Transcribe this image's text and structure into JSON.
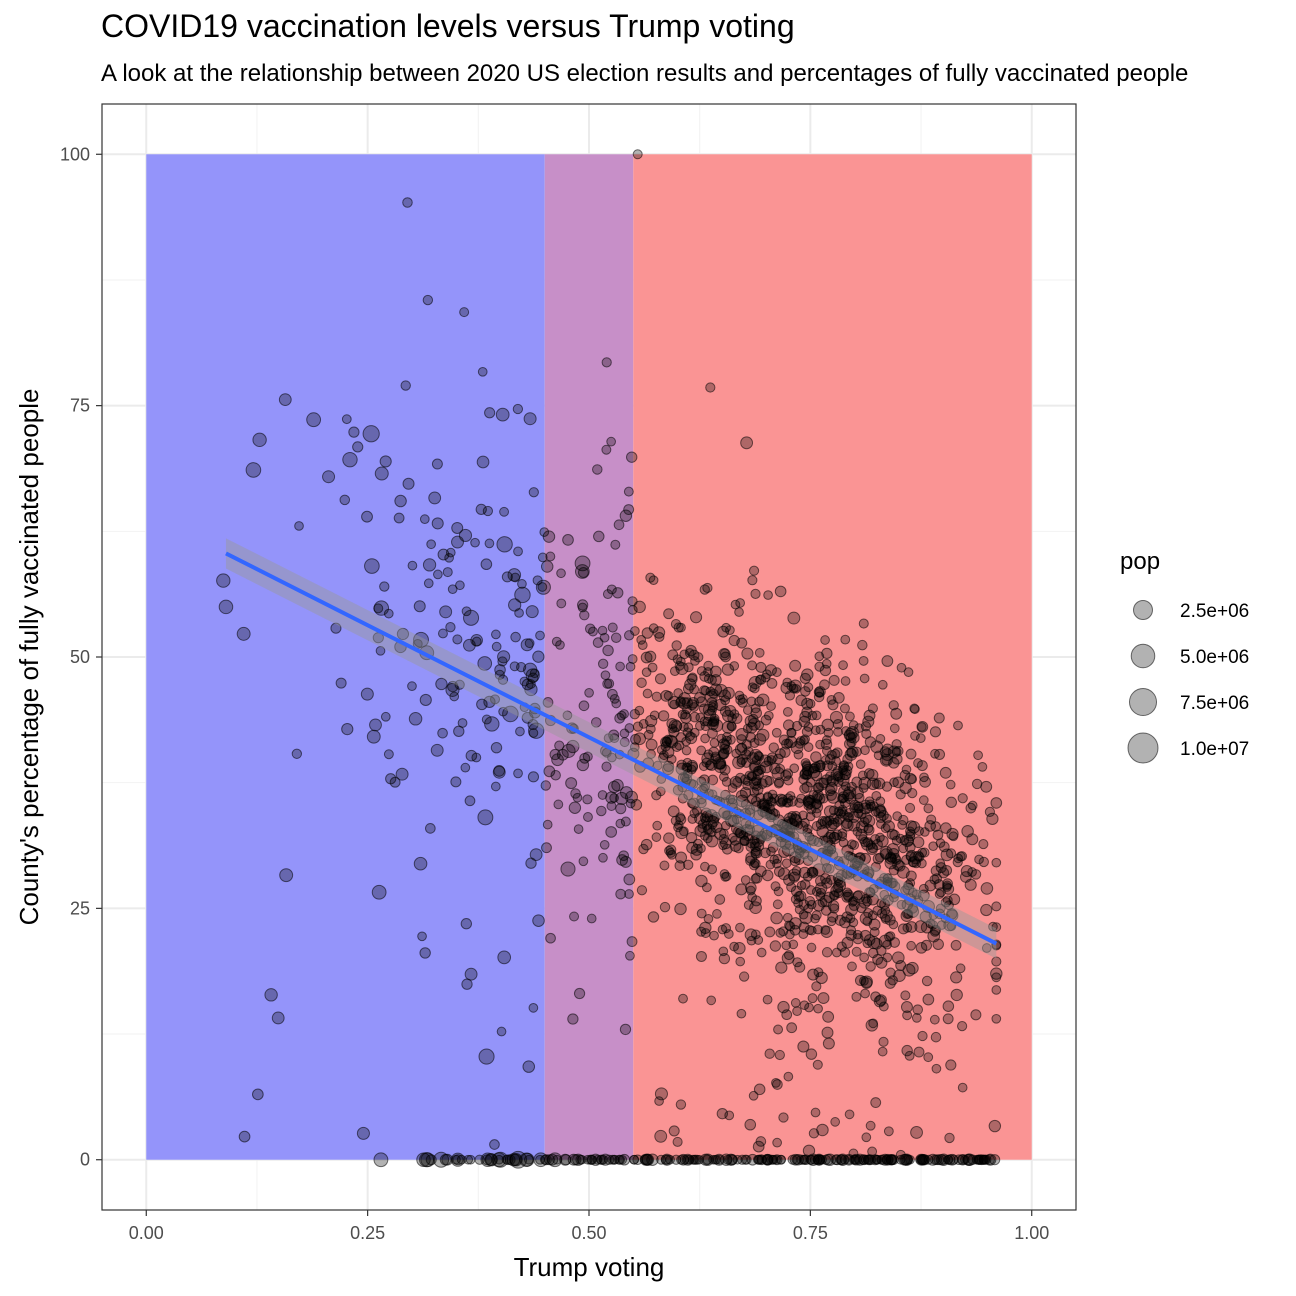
{
  "chart_data": {
    "type": "scatter",
    "title": "COVID19 vaccination levels versus Trump voting",
    "subtitle": "A look at the relationship between 2020 US election results and percentages of fully vaccinated people",
    "xlabel": "Trump voting",
    "ylabel": "County's percentage of fully vaccinated people",
    "xlim": [
      -0.05,
      1.05
    ],
    "ylim": [
      -5,
      105
    ],
    "x_ticks": [
      0.0,
      0.25,
      0.5,
      0.75,
      1.0
    ],
    "x_tick_labels": [
      "0.00",
      "0.25",
      "0.50",
      "0.75",
      "1.00"
    ],
    "y_ticks": [
      0,
      25,
      50,
      75,
      100
    ],
    "y_tick_labels": [
      "0",
      "25",
      "50",
      "75",
      "100"
    ],
    "grid": true,
    "background_bands": [
      {
        "xmin": 0.0,
        "xmax": 0.45,
        "ymin": 0,
        "ymax": 100,
        "color": "#9494fa"
      },
      {
        "xmin": 0.45,
        "xmax": 0.55,
        "ymin": 0,
        "ymax": 100,
        "color": "#c78fc8"
      },
      {
        "xmin": 0.55,
        "xmax": 1.0,
        "ymin": 0,
        "ymax": 100,
        "color": "#fa9494"
      }
    ],
    "trend_line": {
      "x": [
        0.09,
        0.96
      ],
      "y": [
        60.3,
        21.5
      ],
      "color": "#3366ff",
      "ribbon": 1.5
    },
    "point_color": "#000000",
    "point_opacity": 0.3,
    "size_legend": {
      "title": "pop",
      "position": "right",
      "entries": [
        {
          "label": "2.5e+06",
          "value": 2500000
        },
        {
          "label": "5.0e+06",
          "value": 5000000
        },
        {
          "label": "7.5e+06",
          "value": 7500000
        },
        {
          "label": "1.0e+07",
          "value": 10000000
        }
      ]
    },
    "highlighted_points": [
      {
        "x": 0.555,
        "y": 100,
        "pop": 20000
      },
      {
        "x": 0.295,
        "y": 95.2,
        "pop": 50000
      },
      {
        "x": 0.318,
        "y": 85.5,
        "pop": 40000
      },
      {
        "x": 0.359,
        "y": 84.3,
        "pop": 20000
      },
      {
        "x": 0.52,
        "y": 79.3,
        "pop": 30000
      },
      {
        "x": 0.293,
        "y": 77.0,
        "pop": 40000
      },
      {
        "x": 0.637,
        "y": 76.8,
        "pop": 30000
      },
      {
        "x": 0.157,
        "y": 75.6,
        "pop": 300000
      },
      {
        "x": 0.189,
        "y": 73.6,
        "pop": 700000
      },
      {
        "x": 0.128,
        "y": 71.6,
        "pop": 600000
      },
      {
        "x": 0.254,
        "y": 72.2,
        "pop": 1400000
      },
      {
        "x": 0.678,
        "y": 71.3,
        "pop": 300000
      },
      {
        "x": 0.121,
        "y": 68.6,
        "pop": 900000
      },
      {
        "x": 0.087,
        "y": 57.6,
        "pop": 600000
      },
      {
        "x": 0.11,
        "y": 52.3,
        "pop": 500000
      },
      {
        "x": 0.158,
        "y": 28.3,
        "pop": 500000
      },
      {
        "x": 0.263,
        "y": 26.6,
        "pop": 700000
      },
      {
        "x": 0.141,
        "y": 16.4,
        "pop": 400000
      },
      {
        "x": 0.149,
        "y": 14.1,
        "pop": 300000
      },
      {
        "x": 0.126,
        "y": 6.5,
        "pop": 150000
      },
      {
        "x": 0.111,
        "y": 2.3,
        "pop": 150000
      },
      {
        "x": 0.265,
        "y": 0.0,
        "pop": 700000
      },
      {
        "x": 0.42,
        "y": 0.0,
        "pop": 1600000
      },
      {
        "x": 0.4,
        "y": 0.0,
        "pop": 1000000
      },
      {
        "x": 0.333,
        "y": 0.0,
        "pop": 1000000
      }
    ]
  }
}
